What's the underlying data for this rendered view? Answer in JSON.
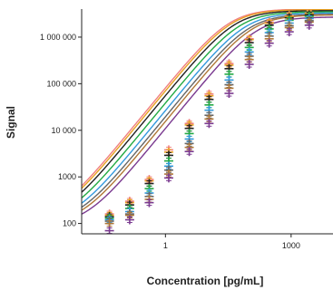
{
  "chart_data": {
    "type": "line",
    "title": "",
    "xlabel": "Concentration [pg/mL]",
    "ylabel": "Signal",
    "x_scale": "log",
    "y_scale": "log",
    "xlim": [
      0.01,
      10000
    ],
    "ylim": [
      60,
      4000000
    ],
    "x_ticks": [
      {
        "value": 1,
        "label": "1"
      },
      {
        "value": 1000,
        "label": "1000"
      }
    ],
    "y_ticks": [
      {
        "value": 100,
        "label": "100"
      },
      {
        "value": 1000,
        "label": "1000"
      },
      {
        "value": 10000,
        "label": "10 000"
      },
      {
        "value": 100000,
        "label": "100 000"
      },
      {
        "value": 1000000,
        "label": "1 000 000"
      }
    ],
    "grid": false,
    "legend": "none",
    "markers": "plus",
    "series": [
      {
        "color": "#f08080",
        "baseline": 120,
        "ec50": 34,
        "top": 4000000,
        "hill": 1.1,
        "x": [
          0.046,
          0.14,
          0.41,
          1.2,
          3.7,
          11,
          33,
          100,
          300,
          900,
          2700
        ],
        "y": [
          160,
          300,
          880,
          3800,
          14000,
          60000,
          270000,
          920000,
          2100000,
          2900000,
          3300000
        ]
      },
      {
        "color": "#e8a020",
        "baseline": 120,
        "ec50": 38,
        "top": 3900000,
        "hill": 1.1,
        "x": [
          0.046,
          0.14,
          0.41,
          1.2,
          3.7,
          11,
          33,
          100,
          300,
          900,
          2700
        ],
        "y": [
          150,
          280,
          820,
          3400,
          13000,
          55000,
          250000,
          880000,
          2000000,
          2800000,
          3200000
        ]
      },
      {
        "color": "#222222",
        "baseline": 115,
        "ec50": 45,
        "top": 3700000,
        "hill": 1.1,
        "x": [
          0.046,
          0.14,
          0.41,
          1.2,
          3.7,
          11,
          33,
          100,
          300,
          900,
          2700
        ],
        "y": [
          140,
          250,
          720,
          2900,
          11000,
          46000,
          210000,
          760000,
          1800000,
          2600000,
          3000000
        ]
      },
      {
        "color": "#22aa44",
        "baseline": 110,
        "ec50": 60,
        "top": 3500000,
        "hill": 1.1,
        "x": [
          0.046,
          0.14,
          0.41,
          1.2,
          3.7,
          11,
          33,
          100,
          300,
          900,
          2700
        ],
        "y": [
          130,
          210,
          560,
          2200,
          8500,
          35000,
          160000,
          600000,
          1500000,
          2300000,
          2800000
        ]
      },
      {
        "color": "#3399dd",
        "baseline": 105,
        "ec50": 80,
        "top": 3300000,
        "hill": 1.1,
        "x": [
          0.046,
          0.14,
          0.41,
          1.2,
          3.7,
          11,
          33,
          100,
          300,
          900,
          2700
        ],
        "y": [
          120,
          180,
          450,
          1700,
          6500,
          27000,
          120000,
          480000,
          1250000,
          2000000,
          2500000
        ]
      },
      {
        "color": "#666666",
        "baseline": 100,
        "ec50": 100,
        "top": 3100000,
        "hill": 1.1,
        "x": [
          0.046,
          0.14,
          0.41,
          1.2,
          3.7,
          11,
          33,
          100,
          300,
          900,
          2700
        ],
        "y": [
          112,
          160,
          380,
          1400,
          5200,
          21000,
          95000,
          390000,
          1050000,
          1750000,
          2250000
        ]
      },
      {
        "color": "#b07838",
        "baseline": 95,
        "ec50": 120,
        "top": 3000000,
        "hill": 1.1,
        "x": [
          0.046,
          0.14,
          0.41,
          1.2,
          3.7,
          11,
          33,
          100,
          300,
          900,
          2700
        ],
        "y": [
          100,
          150,
          330,
          1150,
          4300,
          17500,
          80000,
          330000,
          920000,
          1600000,
          2100000
        ]
      },
      {
        "color": "#7a3a90",
        "baseline": 90,
        "ec50": 150,
        "top": 2700000,
        "hill": 1.1,
        "x": [
          0.046,
          0.14,
          0.41,
          1.2,
          3.7,
          11,
          33,
          100,
          300,
          900,
          2700
        ],
        "y": [
          70,
          120,
          280,
          950,
          3500,
          14000,
          62000,
          260000,
          740000,
          1300000,
          1800000
        ]
      }
    ]
  }
}
